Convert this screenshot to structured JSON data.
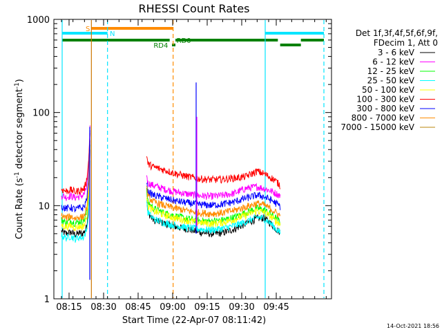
{
  "chart_data": {
    "type": "line",
    "title": "RHESSI Count Rates",
    "xlabel": "Start Time (22-Apr-07 08:11:42)",
    "ylabel_main": "Count Rate (s",
    "ylabel_sup1": "-1",
    "ylabel_mid": " detector segment",
    "ylabel_sup2": "-1",
    "ylabel_end": ")",
    "x_unit": "minutes after 08:11:42",
    "xlim": [
      0,
      100
    ],
    "ylim": [
      1,
      1000
    ],
    "yscale": "log",
    "grid": false,
    "x_ticks": [
      {
        "label": "08:15",
        "value": 3.3
      },
      {
        "label": "08:30",
        "value": 18.3
      },
      {
        "label": "08:45",
        "value": 33.3
      },
      {
        "label": "09:00",
        "value": 48.3
      },
      {
        "label": "09:15",
        "value": 63.3
      },
      {
        "label": "09:30",
        "value": 78.3
      },
      {
        "label": "09:45",
        "value": 93.3
      }
    ],
    "y_ticks": [
      {
        "label": "1",
        "value": 1
      },
      {
        "label": "10",
        "value": 10
      },
      {
        "label": "100",
        "value": 100
      },
      {
        "label": "1000",
        "value": 1000
      }
    ],
    "legend": {
      "placement": "right",
      "header_line1": "Det 1f,3f,4f,5f,6f,9f,",
      "header_line2": "FDecim 1, Att 0"
    },
    "series": [
      {
        "name": "3 - 6 keV",
        "color": "#000000",
        "segments": [
          {
            "x": [
              0,
              2,
              4,
              6,
              8,
              9,
              10,
              11,
              11.8,
              12.4
            ],
            "y": [
              5.3,
              5.0,
              5.2,
              4.9,
              5.1,
              5.0,
              5.3,
              6.0,
              9.0,
              40
            ]
          },
          {
            "x": [
              37,
              37.5,
              40,
              45,
              50,
              55,
              60,
              65,
              70,
              75,
              80,
              85,
              88,
              91,
              93,
              95
            ],
            "y": [
              11.5,
              8.5,
              7.0,
              6.4,
              5.9,
              5.6,
              5.2,
              5.0,
              5.1,
              5.6,
              6.4,
              7.3,
              7.4,
              6.4,
              5.7,
              5.2
            ]
          }
        ]
      },
      {
        "name": "6 - 12 keV",
        "color": "#ff00ff",
        "segments": [
          {
            "x": [
              0,
              2,
              4,
              6,
              8,
              9,
              10,
              11,
              11.8,
              12.4
            ],
            "y": [
              13.0,
              12.3,
              12.8,
              12.2,
              12.6,
              12.8,
              13.5,
              16.0,
              28.0,
              72
            ]
          },
          {
            "x": [
              37,
              37.5,
              40,
              45,
              50,
              55,
              60,
              65,
              70,
              75,
              80,
              85,
              88,
              91,
              93,
              95
            ],
            "y": [
              22.0,
              17.5,
              16.5,
              15.0,
              14.0,
              13.3,
              12.8,
              12.6,
              12.9,
              13.6,
              15.3,
              16.0,
              15.3,
              14.4,
              13.6,
              12.8
            ]
          }
        ]
      },
      {
        "name": "12 - 25 keV",
        "color": "#00ff00",
        "segments": [
          {
            "x": [
              0,
              2,
              4,
              6,
              8,
              9,
              10,
              11,
              11.8,
              12.4
            ],
            "y": [
              7.0,
              6.6,
              6.9,
              6.5,
              6.8,
              6.7,
              7.1,
              8.5,
              14.0,
              45
            ]
          },
          {
            "x": [
              37,
              37.5,
              40,
              45,
              50,
              55,
              60,
              65,
              70,
              75,
              80,
              85,
              88,
              91,
              93,
              95
            ],
            "y": [
              14.5,
              11.0,
              9.3,
              8.3,
              7.7,
              7.2,
              6.9,
              6.8,
              7.0,
              7.5,
              8.4,
              9.4,
              9.0,
              8.1,
              7.4,
              6.7
            ]
          }
        ]
      },
      {
        "name": "25 - 50 keV",
        "color": "#00ffff",
        "segments": [
          {
            "x": [
              0,
              2,
              4,
              6,
              8,
              9,
              10,
              11,
              11.8,
              12.4
            ],
            "y": [
              4.8,
              4.5,
              4.7,
              4.4,
              4.6,
              4.5,
              4.8,
              5.5,
              8.0,
              30
            ]
          },
          {
            "x": [
              37,
              37.5,
              40,
              45,
              50,
              55,
              60,
              65,
              70,
              75,
              80,
              85,
              88,
              91,
              93,
              95
            ],
            "y": [
              12.0,
              8.5,
              7.2,
              6.5,
              6.1,
              5.8,
              5.6,
              5.5,
              5.7,
              6.1,
              6.7,
              7.5,
              7.3,
              6.4,
              5.7,
              5.1
            ]
          }
        ]
      },
      {
        "name": "50 - 100 keV",
        "color": "#ffff00",
        "segments": [
          {
            "x": [
              0,
              2,
              4,
              6,
              8,
              9,
              10,
              11,
              11.8,
              12.4
            ],
            "y": [
              6.2,
              5.9,
              6.1,
              5.8,
              6.0,
              5.9,
              6.3,
              7.5,
              12.0,
              42
            ]
          },
          {
            "x": [
              37,
              37.5,
              40,
              45,
              50,
              55,
              60,
              65,
              70,
              75,
              80,
              85,
              88,
              91,
              93,
              95
            ],
            "y": [
              13.0,
              10.0,
              8.7,
              7.9,
              7.3,
              6.9,
              6.6,
              6.4,
              6.6,
              7.1,
              7.9,
              8.8,
              8.5,
              7.6,
              6.9,
              6.3
            ]
          }
        ]
      },
      {
        "name": "100 - 300 keV",
        "color": "#ff0000",
        "segments": [
          {
            "x": [
              0,
              2,
              4,
              6,
              8,
              9,
              10,
              11,
              11.8,
              12.4
            ],
            "y": [
              15.0,
              14.3,
              14.8,
              14.1,
              14.6,
              14.8,
              15.5,
              19.0,
              30.0,
              60
            ]
          },
          {
            "x": [
              37,
              37.5,
              40,
              45,
              50,
              55,
              60,
              65,
              70,
              75,
              80,
              85,
              88,
              91,
              93,
              95
            ],
            "y": [
              36.0,
              28.0,
              26.0,
              24.0,
              22.0,
              20.5,
              19.5,
              19.0,
              19.2,
              19.8,
              20.5,
              23.5,
              22.0,
              20.0,
              18.5,
              16.5
            ]
          }
        ]
      },
      {
        "name": "300 - 800 keV",
        "color": "#0000ff",
        "segments": [
          {
            "x": [
              0,
              2,
              4,
              6,
              8,
              9,
              10,
              11,
              11.8,
              12.4
            ],
            "y": [
              9.8,
              9.3,
              9.6,
              9.1,
              9.5,
              9.4,
              9.9,
              12.0,
              20.0,
              65
            ]
          },
          {
            "x": [
              37,
              37.5,
              40,
              45,
              50,
              55,
              60,
              65,
              70,
              75,
              80,
              85,
              88,
              91,
              93,
              95
            ],
            "y": [
              18.0,
              14.0,
              13.0,
              12.0,
              11.2,
              10.7,
              10.3,
              10.1,
              10.4,
              11.0,
              12.0,
              13.0,
              12.5,
              11.5,
              10.7,
              9.8
            ]
          }
        ]
      },
      {
        "name": "800 - 7000 keV",
        "color": "#ff8c00",
        "segments": [
          {
            "x": [
              0,
              2,
              4,
              6,
              8,
              9,
              10,
              11,
              11.8,
              12.4
            ],
            "y": [
              7.8,
              7.4,
              7.7,
              7.3,
              7.6,
              7.5,
              7.9,
              9.5,
              15.0,
              50
            ]
          },
          {
            "x": [
              37,
              37.5,
              40,
              45,
              50,
              55,
              60,
              65,
              70,
              75,
              80,
              85,
              88,
              91,
              93,
              95
            ],
            "y": [
              16.0,
              12.5,
              11.0,
              10.0,
              9.3,
              8.8,
              8.4,
              8.2,
              8.4,
              8.9,
              9.7,
              10.6,
              10.2,
              9.2,
              8.5,
              7.8
            ]
          }
        ]
      },
      {
        "name": "7000 - 15000 keV",
        "color": "#b8860b",
        "segments": []
      }
    ],
    "spikes": [
      {
        "x": 12.3,
        "y_from": 1.6,
        "y_to": 70,
        "color": "#0000ff"
      },
      {
        "x": 58.5,
        "y_from": 5.0,
        "y_to": 210,
        "color": "#0000ff"
      },
      {
        "x": 58.8,
        "y_from": 6.0,
        "y_to": 90,
        "color": "#ff00ff"
      }
    ],
    "vlines": [
      {
        "x": 0.3,
        "color": "#00e5ff",
        "style": "solid"
      },
      {
        "x": 13.0,
        "color": "#cc7700",
        "style": "solid"
      },
      {
        "x": 20.0,
        "color": "#00e5ff",
        "style": "dashed"
      },
      {
        "x": 48.5,
        "color": "#ff8c00",
        "style": "dashed"
      },
      {
        "x": 88.5,
        "color": "#00e5ff",
        "style": "solid"
      },
      {
        "x": 114.0,
        "color": "#00e5ff",
        "style": "dashed"
      }
    ],
    "flag_bars": [
      {
        "label": "S",
        "color": "#ff8c00",
        "row": 0,
        "x0": 13.0,
        "x1": 48.5,
        "label_x": 10.5,
        "label_color": "#ff8c00"
      },
      {
        "label": "N",
        "color": "#00e5ff",
        "row": 1,
        "x0": 0.3,
        "x1": 20.0,
        "label_x": 21.0,
        "label_color": "#00e5ff"
      },
      {
        "label": "",
        "color": "#00e5ff",
        "row": 1,
        "x0": 88.5,
        "x1": 114.0,
        "label_x": 0,
        "label_color": ""
      },
      {
        "label": "RD0",
        "color": "#008000",
        "row": 2,
        "x0": 0.3,
        "x1": 47.0,
        "label_x": 50.0,
        "label_color": "#008000"
      },
      {
        "label": "",
        "color": "#008000",
        "row": 2,
        "x0": 49.5,
        "x1": 94.0,
        "label_x": 0,
        "label_color": ""
      },
      {
        "label": "",
        "color": "#008000",
        "row": 2,
        "x0": 104.0,
        "x1": 114.0,
        "label_x": 0,
        "label_color": ""
      },
      {
        "label": "RD4",
        "color": "#008000",
        "row": 3,
        "x0": 48.0,
        "x1": 49.5,
        "label_x": 40.0,
        "label_color": "#008000"
      },
      {
        "label": "",
        "color": "#008000",
        "row": 3,
        "x0": 95.0,
        "x1": 104.0,
        "label_x": 0,
        "label_color": ""
      }
    ]
  },
  "timestamp": "14-Oct-2021 18:56"
}
